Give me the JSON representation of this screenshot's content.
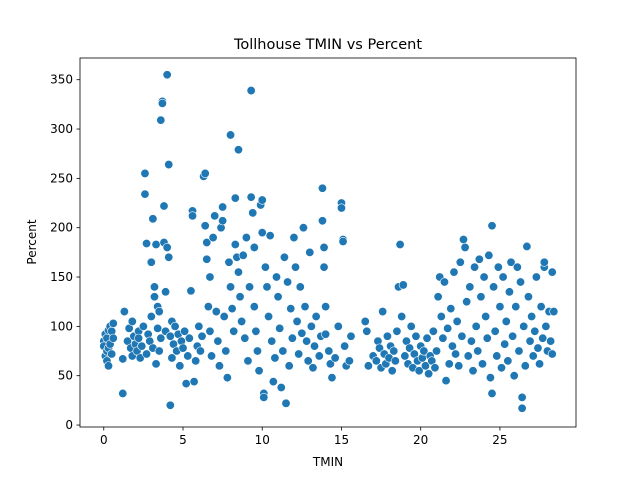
{
  "chart_data": {
    "type": "scatter",
    "title": "Tollhouse TMIN vs Percent",
    "xlabel": "TMIN",
    "ylabel": "Percent",
    "xlim": [
      -1.5,
      29.8
    ],
    "ylim": [
      -2,
      372
    ],
    "xticks": [
      0,
      5,
      10,
      15,
      20,
      25
    ],
    "yticks": [
      0,
      50,
      100,
      150,
      200,
      250,
      300,
      350
    ],
    "grid": false,
    "legend": "none",
    "series": [
      {
        "color": "#1f77b4",
        "edgecolor": "#ffffff",
        "points": [
          [
            0.0,
            85
          ],
          [
            0.0,
            80
          ],
          [
            0.1,
            92
          ],
          [
            0.1,
            70
          ],
          [
            0.2,
            75
          ],
          [
            0.2,
            88
          ],
          [
            0.2,
            65
          ],
          [
            0.3,
            96
          ],
          [
            0.3,
            60
          ],
          [
            0.3,
            78
          ],
          [
            0.4,
            82
          ],
          [
            0.4,
            100
          ],
          [
            0.5,
            72
          ],
          [
            0.5,
            95
          ],
          [
            0.6,
            88
          ],
          [
            0.6,
            103
          ],
          [
            1.2,
            32
          ],
          [
            1.2,
            67
          ],
          [
            1.3,
            115
          ],
          [
            1.5,
            85
          ],
          [
            1.6,
            98
          ],
          [
            1.7,
            78
          ],
          [
            1.8,
            105
          ],
          [
            1.8,
            70
          ],
          [
            1.9,
            90
          ],
          [
            2.0,
            82
          ],
          [
            2.1,
            75
          ],
          [
            2.2,
            95
          ],
          [
            2.2,
            88
          ],
          [
            2.3,
            68
          ],
          [
            2.4,
            80
          ],
          [
            2.5,
            100
          ],
          [
            2.6,
            255
          ],
          [
            2.6,
            234
          ],
          [
            2.7,
            184
          ],
          [
            2.7,
            72
          ],
          [
            2.8,
            92
          ],
          [
            2.9,
            85
          ],
          [
            3.0,
            165
          ],
          [
            3.0,
            110
          ],
          [
            3.1,
            209
          ],
          [
            3.1,
            78
          ],
          [
            3.2,
            140
          ],
          [
            3.2,
            130
          ],
          [
            3.3,
            183
          ],
          [
            3.3,
            62
          ],
          [
            3.4,
            98
          ],
          [
            3.4,
            120
          ],
          [
            3.5,
            115
          ],
          [
            3.5,
            75
          ],
          [
            3.6,
            88
          ],
          [
            3.6,
            309
          ],
          [
            3.7,
            328
          ],
          [
            3.7,
            326
          ],
          [
            3.8,
            222
          ],
          [
            3.8,
            185
          ],
          [
            3.9,
            135
          ],
          [
            3.9,
            95
          ],
          [
            4.0,
            180
          ],
          [
            4.0,
            355
          ],
          [
            4.1,
            264
          ],
          [
            4.1,
            170
          ],
          [
            4.2,
            20
          ],
          [
            4.2,
            90
          ],
          [
            4.3,
            105
          ],
          [
            4.3,
            68
          ],
          [
            4.4,
            82
          ],
          [
            4.5,
            100
          ],
          [
            4.6,
            75
          ],
          [
            4.7,
            92
          ],
          [
            4.8,
            60
          ],
          [
            4.9,
            85
          ],
          [
            5.0,
            78
          ],
          [
            5.1,
            95
          ],
          [
            5.2,
            42
          ],
          [
            5.3,
            70
          ],
          [
            5.4,
            88
          ],
          [
            5.5,
            136
          ],
          [
            5.6,
            217
          ],
          [
            5.6,
            212
          ],
          [
            5.7,
            44
          ],
          [
            5.8,
            65
          ],
          [
            5.9,
            80
          ],
          [
            6.0,
            100
          ],
          [
            6.1,
            75
          ],
          [
            6.2,
            90
          ],
          [
            6.3,
            252
          ],
          [
            6.4,
            255
          ],
          [
            6.4,
            202
          ],
          [
            6.5,
            185
          ],
          [
            6.5,
            168
          ],
          [
            6.6,
            120
          ],
          [
            6.7,
            150
          ],
          [
            6.7,
            95
          ],
          [
            6.8,
            70
          ],
          [
            6.9,
            190
          ],
          [
            7.0,
            212
          ],
          [
            7.1,
            115
          ],
          [
            7.2,
            85
          ],
          [
            7.3,
            60
          ],
          [
            7.4,
            200
          ],
          [
            7.5,
            207
          ],
          [
            7.5,
            221
          ],
          [
            7.6,
            110
          ],
          [
            7.7,
            75
          ],
          [
            7.8,
            48
          ],
          [
            7.9,
            165
          ],
          [
            8.0,
            294
          ],
          [
            8.0,
            140
          ],
          [
            8.1,
            118
          ],
          [
            8.2,
            95
          ],
          [
            8.3,
            230
          ],
          [
            8.3,
            183
          ],
          [
            8.4,
            170
          ],
          [
            8.5,
            279
          ],
          [
            8.5,
            155
          ],
          [
            8.6,
            130
          ],
          [
            8.7,
            105
          ],
          [
            8.8,
            172
          ],
          [
            8.9,
            88
          ],
          [
            9.0,
            190
          ],
          [
            9.1,
            65
          ],
          [
            9.2,
            140
          ],
          [
            9.3,
            231
          ],
          [
            9.3,
            339
          ],
          [
            9.4,
            215
          ],
          [
            9.5,
            180
          ],
          [
            9.5,
            120
          ],
          [
            9.6,
            95
          ],
          [
            9.7,
            75
          ],
          [
            9.8,
            55
          ],
          [
            9.9,
            223
          ],
          [
            10.0,
            228
          ],
          [
            10.0,
            195
          ],
          [
            10.1,
            32
          ],
          [
            10.1,
            28
          ],
          [
            10.2,
            160
          ],
          [
            10.3,
            140
          ],
          [
            10.4,
            110
          ],
          [
            10.5,
            192
          ],
          [
            10.6,
            85
          ],
          [
            10.7,
            44
          ],
          [
            10.8,
            68
          ],
          [
            10.9,
            150
          ],
          [
            11.0,
            130
          ],
          [
            11.1,
            98
          ],
          [
            11.2,
            38
          ],
          [
            11.3,
            75
          ],
          [
            11.4,
            170
          ],
          [
            11.5,
            22
          ],
          [
            11.6,
            145
          ],
          [
            11.7,
            60
          ],
          [
            11.8,
            118
          ],
          [
            11.9,
            88
          ],
          [
            12.0,
            190
          ],
          [
            12.1,
            160
          ],
          [
            12.2,
            105
          ],
          [
            12.3,
            72
          ],
          [
            12.4,
            140
          ],
          [
            12.5,
            93
          ],
          [
            12.6,
            200
          ],
          [
            12.7,
            120
          ],
          [
            12.8,
            85
          ],
          [
            12.9,
            65
          ],
          [
            13.0,
            175
          ],
          [
            13.1,
            100
          ],
          [
            13.2,
            58
          ],
          [
            13.3,
            80
          ],
          [
            13.4,
            110
          ],
          [
            13.6,
            70
          ],
          [
            13.7,
            90
          ],
          [
            13.8,
            240
          ],
          [
            13.8,
            207
          ],
          [
            13.9,
            180
          ],
          [
            13.9,
            160
          ],
          [
            14.0,
            120
          ],
          [
            14.0,
            92
          ],
          [
            14.2,
            75
          ],
          [
            14.3,
            62
          ],
          [
            14.4,
            48
          ],
          [
            14.6,
            68
          ],
          [
            14.8,
            100
          ],
          [
            15.0,
            225
          ],
          [
            15.0,
            220
          ],
          [
            15.1,
            188
          ],
          [
            15.1,
            186
          ],
          [
            15.2,
            80
          ],
          [
            15.3,
            60
          ],
          [
            15.5,
            65
          ],
          [
            15.6,
            90
          ],
          [
            16.5,
            105
          ],
          [
            16.6,
            95
          ],
          [
            16.7,
            60
          ],
          [
            17.0,
            70
          ],
          [
            17.2,
            65
          ],
          [
            17.3,
            85
          ],
          [
            17.4,
            78
          ],
          [
            17.5,
            58
          ],
          [
            17.6,
            115
          ],
          [
            17.7,
            72
          ],
          [
            17.8,
            62
          ],
          [
            17.9,
            90
          ],
          [
            18.0,
            68
          ],
          [
            18.1,
            80
          ],
          [
            18.2,
            55
          ],
          [
            18.3,
            75
          ],
          [
            18.4,
            65
          ],
          [
            18.5,
            95
          ],
          [
            18.6,
            140
          ],
          [
            18.7,
            183
          ],
          [
            18.8,
            110
          ],
          [
            18.9,
            142
          ],
          [
            19.0,
            70
          ],
          [
            19.1,
            85
          ],
          [
            19.2,
            62
          ],
          [
            19.3,
            78
          ],
          [
            19.4,
            100
          ],
          [
            19.5,
            58
          ],
          [
            19.6,
            72
          ],
          [
            19.7,
            90
          ],
          [
            19.8,
            65
          ],
          [
            19.9,
            55
          ],
          [
            20.0,
            80
          ],
          [
            20.1,
            68
          ],
          [
            20.2,
            75
          ],
          [
            20.3,
            60
          ],
          [
            20.4,
            88
          ],
          [
            20.5,
            52
          ],
          [
            20.6,
            70
          ],
          [
            20.7,
            65
          ],
          [
            20.8,
            95
          ],
          [
            20.9,
            58
          ],
          [
            21.0,
            75
          ],
          [
            21.1,
            130
          ],
          [
            21.2,
            150
          ],
          [
            21.3,
            110
          ],
          [
            21.4,
            88
          ],
          [
            21.5,
            145
          ],
          [
            21.6,
            45
          ],
          [
            21.7,
            98
          ],
          [
            21.8,
            62
          ],
          [
            21.9,
            118
          ],
          [
            22.0,
            80
          ],
          [
            22.1,
            155
          ],
          [
            22.2,
            72
          ],
          [
            22.3,
            105
          ],
          [
            22.4,
            60
          ],
          [
            22.5,
            165
          ],
          [
            22.6,
            90
          ],
          [
            22.7,
            188
          ],
          [
            22.8,
            180
          ],
          [
            22.9,
            125
          ],
          [
            23.0,
            70
          ],
          [
            23.1,
            140
          ],
          [
            23.2,
            85
          ],
          [
            23.3,
            55
          ],
          [
            23.4,
            160
          ],
          [
            23.5,
            100
          ],
          [
            23.6,
            75
          ],
          [
            23.7,
            168
          ],
          [
            23.8,
            130
          ],
          [
            23.9,
            62
          ],
          [
            24.0,
            150
          ],
          [
            24.1,
            110
          ],
          [
            24.2,
            88
          ],
          [
            24.3,
            172
          ],
          [
            24.4,
            48
          ],
          [
            24.5,
            202
          ],
          [
            24.5,
            32
          ],
          [
            24.6,
            140
          ],
          [
            24.7,
            95
          ],
          [
            24.8,
            70
          ],
          [
            24.9,
            160
          ],
          [
            25.0,
            120
          ],
          [
            25.1,
            58
          ],
          [
            25.2,
            150
          ],
          [
            25.3,
            82
          ],
          [
            25.4,
            105
          ],
          [
            25.5,
            65
          ],
          [
            25.6,
            135
          ],
          [
            25.7,
            165
          ],
          [
            25.8,
            90
          ],
          [
            25.9,
            50
          ],
          [
            26.0,
            120
          ],
          [
            26.1,
            160
          ],
          [
            26.2,
            75
          ],
          [
            26.3,
            145
          ],
          [
            26.4,
            28
          ],
          [
            26.4,
            17
          ],
          [
            26.5,
            100
          ],
          [
            26.6,
            60
          ],
          [
            26.7,
            181
          ],
          [
            26.8,
            130
          ],
          [
            26.9,
            85
          ],
          [
            27.0,
            110
          ],
          [
            27.1,
            70
          ],
          [
            27.2,
            95
          ],
          [
            27.3,
            150
          ],
          [
            27.4,
            78
          ],
          [
            27.5,
            62
          ],
          [
            27.6,
            120
          ],
          [
            27.7,
            88
          ],
          [
            27.8,
            160
          ],
          [
            27.8,
            165
          ],
          [
            27.9,
            100
          ],
          [
            28.0,
            75
          ],
          [
            28.1,
            115
          ],
          [
            28.2,
            85
          ],
          [
            28.3,
            155
          ],
          [
            28.3,
            72
          ],
          [
            28.4,
            115
          ]
        ]
      }
    ]
  }
}
